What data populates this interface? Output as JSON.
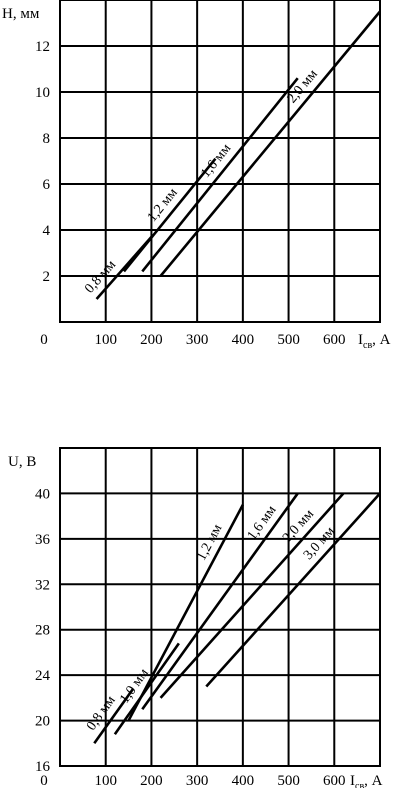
{
  "chart_data": [
    {
      "type": "line",
      "ylabel": "H, мм",
      "xlabel_main": "I",
      "xlabel_sub": "св",
      "xlabel_unit": ", А",
      "origin_label": "0",
      "xlim": [
        0,
        700
      ],
      "ylim": [
        0,
        14
      ],
      "x_ticks": [
        100,
        200,
        300,
        400,
        500,
        600
      ],
      "y_ticks": [
        2,
        4,
        6,
        8,
        10,
        12
      ],
      "grid": true,
      "series": [
        {
          "name": "0,8 мм",
          "x": [
            80,
            200
          ],
          "y": [
            1.0,
            3.7
          ]
        },
        {
          "name": "1,2 мм",
          "x": [
            140,
            340
          ],
          "y": [
            2.2,
            7.1
          ]
        },
        {
          "name": "1,6 мм",
          "x": [
            180,
            520
          ],
          "y": [
            2.2,
            10.6
          ]
        },
        {
          "name": "2,0 мм",
          "x": [
            220,
            700
          ],
          "y": [
            2.0,
            13.5
          ]
        }
      ]
    },
    {
      "type": "line",
      "ylabel": "U, В",
      "xlabel_main": "I",
      "xlabel_sub": "св",
      "xlabel_unit": ", А",
      "origin_label": "0",
      "xlim": [
        0,
        700
      ],
      "ylim": [
        16,
        44
      ],
      "x_ticks": [
        100,
        200,
        300,
        400,
        500,
        600
      ],
      "y_ticks": [
        16,
        20,
        24,
        28,
        32,
        36,
        40
      ],
      "grid": true,
      "series": [
        {
          "name": "0,8 мм",
          "x": [
            75,
            160
          ],
          "y": [
            18.0,
            22.8
          ]
        },
        {
          "name": "1,0 мм",
          "x": [
            120,
            260
          ],
          "y": [
            18.8,
            26.8
          ]
        },
        {
          "name": "1,2 мм",
          "x": [
            150,
            400
          ],
          "y": [
            20.0,
            39.0
          ]
        },
        {
          "name": "1,6 мм",
          "x": [
            180,
            520
          ],
          "y": [
            21.0,
            40.0
          ]
        },
        {
          "name": "2,0 мм",
          "x": [
            220,
            620
          ],
          "y": [
            22.0,
            40.0
          ]
        },
        {
          "name": "3,0 мм",
          "x": [
            320,
            700
          ],
          "y": [
            23.0,
            40.0
          ]
        }
      ]
    }
  ]
}
